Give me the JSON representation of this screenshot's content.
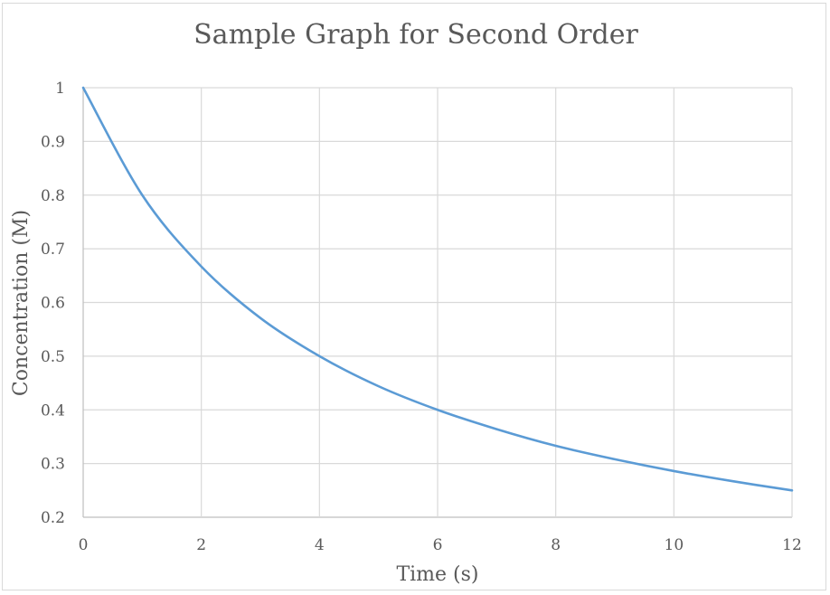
{
  "chart_data": {
    "type": "line",
    "title": "Sample Graph for Second Order",
    "xlabel": "Time (s)",
    "ylabel": "Concentration (M)",
    "xlim": [
      0,
      12
    ],
    "ylim": [
      0.2,
      1
    ],
    "x_ticks": [
      "0",
      "2",
      "4",
      "6",
      "8",
      "10",
      "12"
    ],
    "y_ticks": [
      "0.2",
      "0.3",
      "0.4",
      "0.5",
      "0.6",
      "0.7",
      "0.8",
      "0.9",
      "1"
    ],
    "grid": true,
    "legend": null,
    "series": [
      {
        "name": "Concentration",
        "color": "#5b9bd5",
        "x": [
          0,
          1,
          2,
          3,
          4,
          5,
          6,
          7,
          8,
          9,
          10,
          11,
          12
        ],
        "values": [
          1.0,
          0.8,
          0.667,
          0.571,
          0.5,
          0.444,
          0.4,
          0.364,
          0.333,
          0.308,
          0.286,
          0.267,
          0.25
        ]
      }
    ]
  }
}
